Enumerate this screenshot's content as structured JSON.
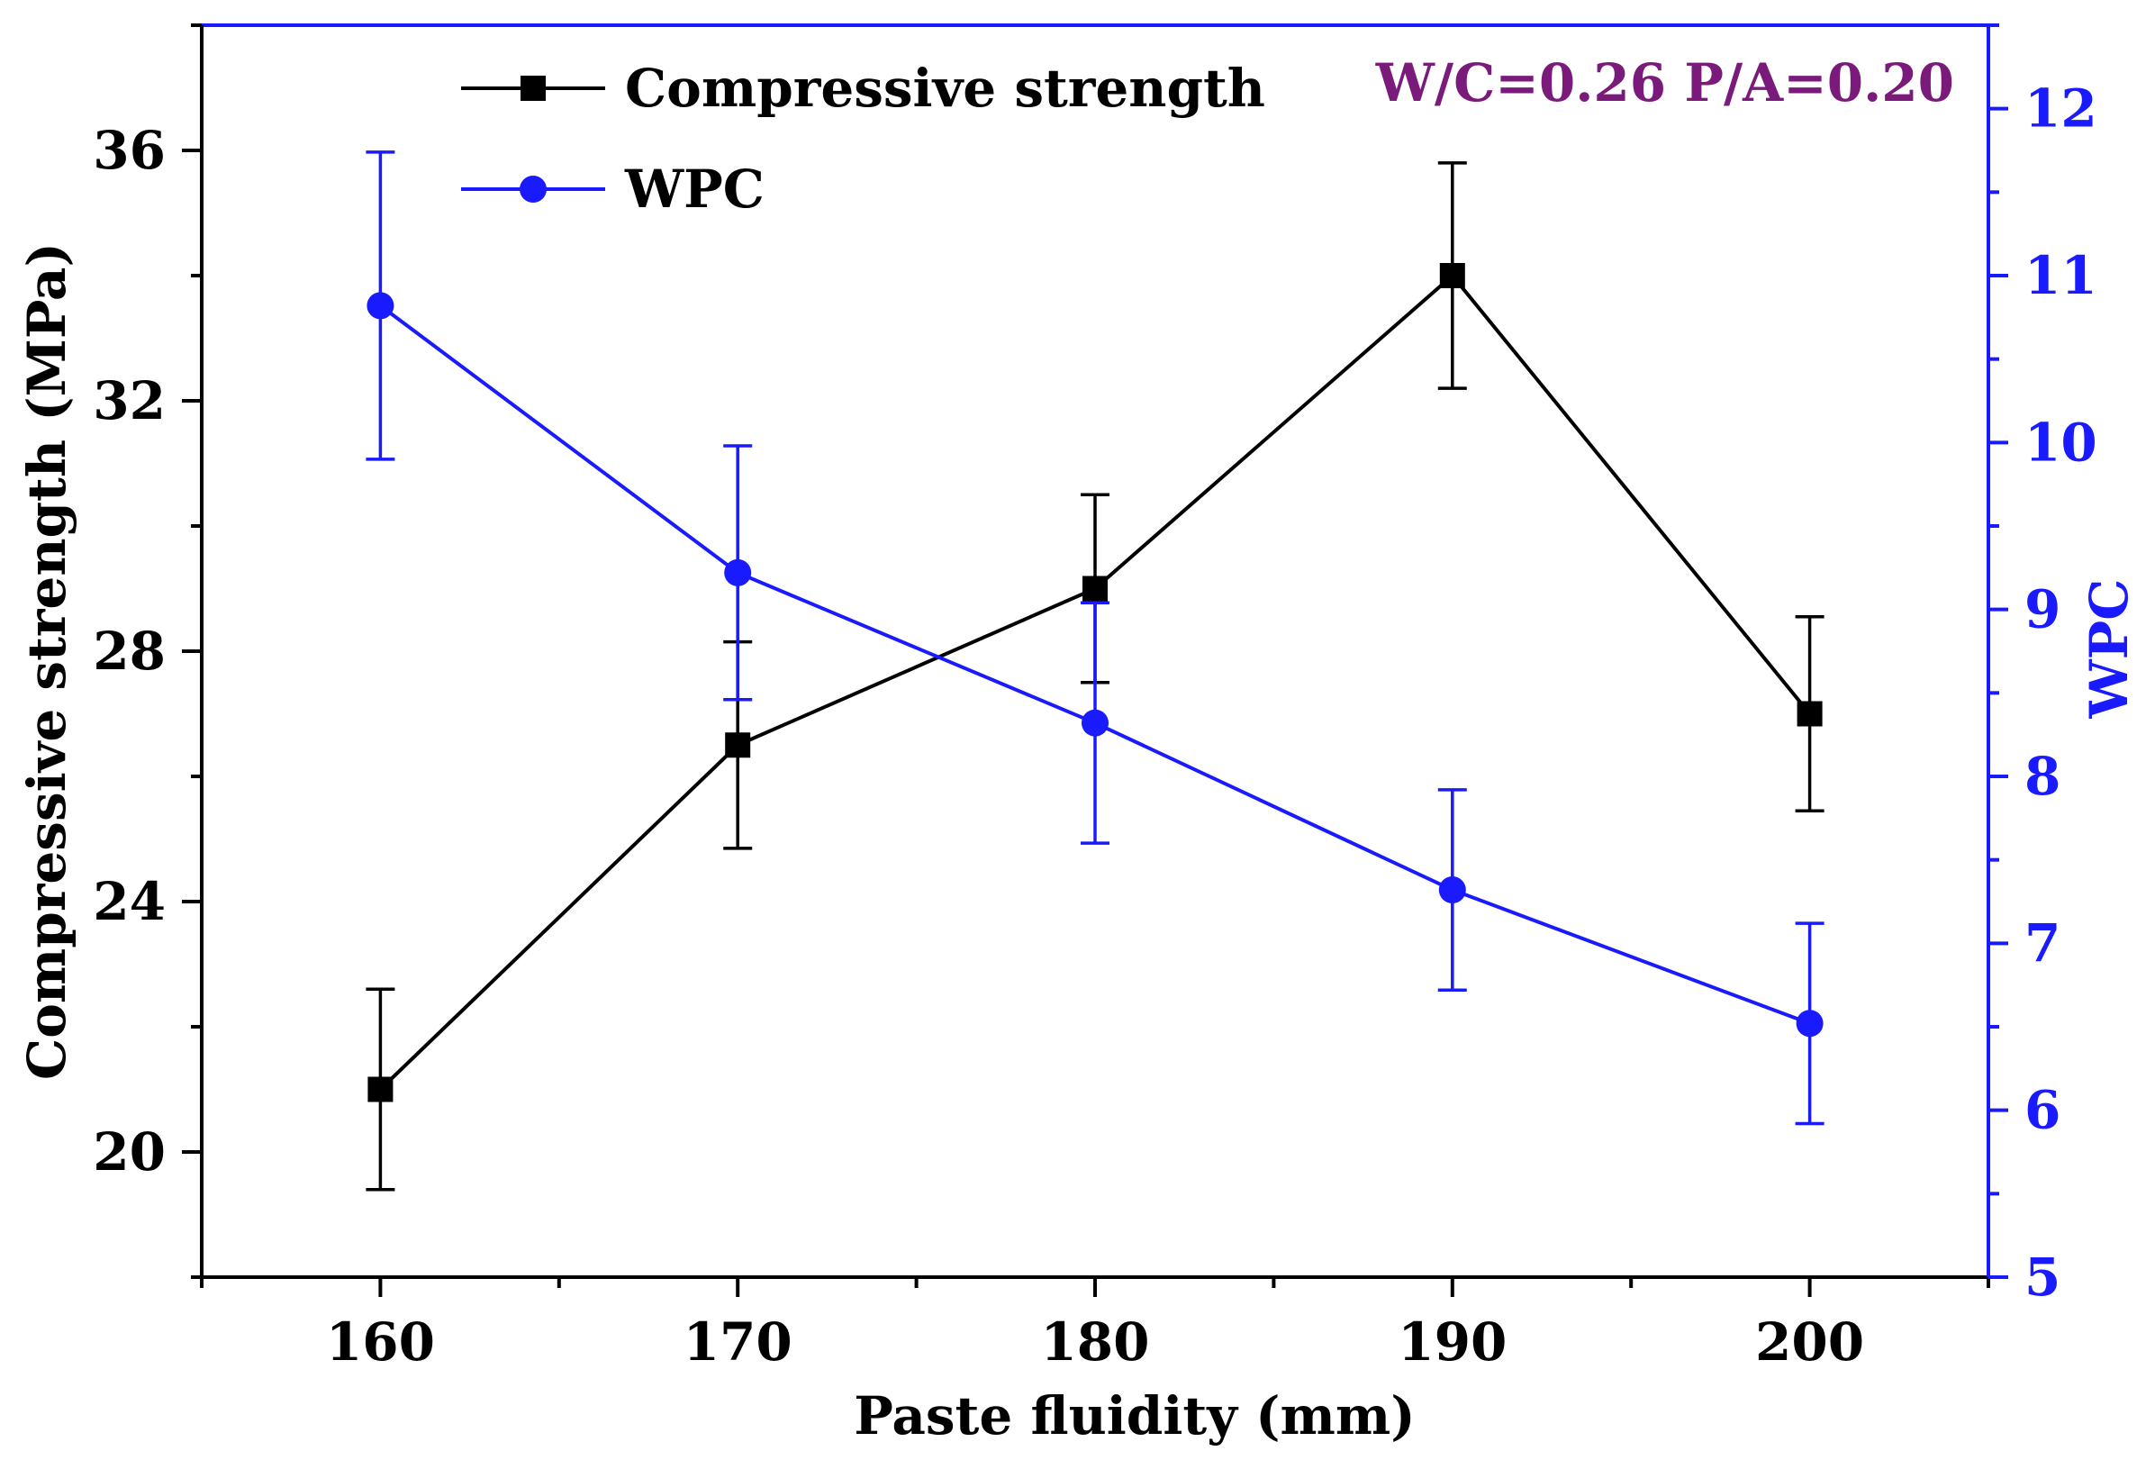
{
  "chart_data": {
    "type": "line",
    "title": "",
    "annotation": "W/C=0.26 P/A=0.20",
    "xlabel": "Paste fluidity (mm)",
    "ylabel_left": "Compressive strength (MPa)",
    "ylabel_right": "WPC",
    "x": [
      160,
      170,
      180,
      190,
      200
    ],
    "x_ticks": [
      "160",
      "170",
      "180",
      "190",
      "200"
    ],
    "xlim": [
      155,
      205
    ],
    "ylim_left": [
      18,
      38
    ],
    "ylim_right": [
      5,
      12.5
    ],
    "y_left_ticks": [
      "20",
      "24",
      "28",
      "32",
      "36"
    ],
    "y_right_ticks": [
      "5",
      "6",
      "7",
      "8",
      "9",
      "10",
      "11",
      "12"
    ],
    "legend_position": "top-left",
    "series": [
      {
        "name": "Compressive strength",
        "axis": "left",
        "marker": "square",
        "color": "#000000",
        "values": [
          21.0,
          26.5,
          29.0,
          34.0,
          27.0
        ],
        "errors": [
          1.6,
          1.65,
          1.5,
          1.8,
          1.55
        ]
      },
      {
        "name": "WPC",
        "axis": "right",
        "marker": "circle",
        "color": "#1a1aff",
        "values": [
          10.82,
          9.22,
          8.32,
          7.32,
          6.52
        ],
        "errors": [
          0.92,
          0.76,
          0.72,
          0.6,
          0.6
        ]
      }
    ],
    "colors": {
      "axis_left": "#000000",
      "axis_right": "#1a1aff",
      "annotation": "#7a1a7a"
    }
  }
}
